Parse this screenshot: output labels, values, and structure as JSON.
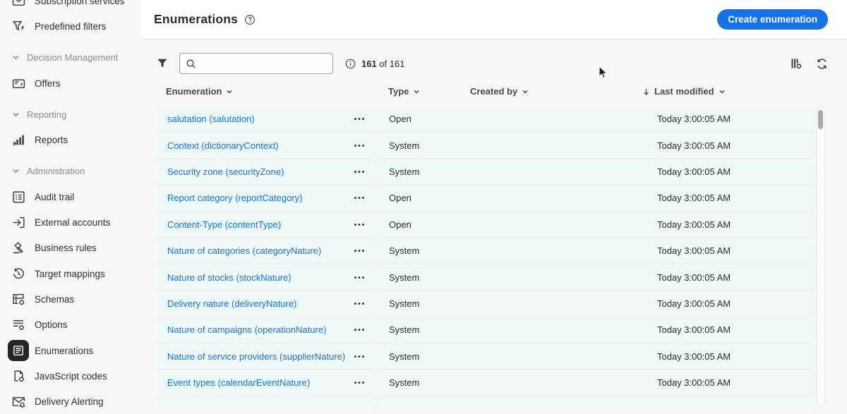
{
  "sidebar": {
    "items": [
      {
        "kind": "item",
        "label": "Subscription services",
        "icon": "subscription-services-icon",
        "selected": false
      },
      {
        "kind": "item",
        "label": "Predefined filters",
        "icon": "predefined-filters-icon",
        "selected": false
      },
      {
        "kind": "section",
        "label": "Decision Management"
      },
      {
        "kind": "item",
        "label": "Offers",
        "icon": "offers-icon",
        "selected": false
      },
      {
        "kind": "section",
        "label": "Reporting"
      },
      {
        "kind": "item",
        "label": "Reports",
        "icon": "reports-icon",
        "selected": false
      },
      {
        "kind": "section",
        "label": "Administration"
      },
      {
        "kind": "item",
        "label": "Audit trail",
        "icon": "audit-trail-icon",
        "selected": false
      },
      {
        "kind": "item",
        "label": "External accounts",
        "icon": "external-accounts-icon",
        "selected": false
      },
      {
        "kind": "item",
        "label": "Business rules",
        "icon": "business-rules-icon",
        "selected": false
      },
      {
        "kind": "item",
        "label": "Target mappings",
        "icon": "target-mappings-icon",
        "selected": false
      },
      {
        "kind": "item",
        "label": "Schemas",
        "icon": "schemas-icon",
        "selected": false
      },
      {
        "kind": "item",
        "label": "Options",
        "icon": "options-icon",
        "selected": false
      },
      {
        "kind": "item",
        "label": "Enumerations",
        "icon": "enumerations-icon",
        "selected": true
      },
      {
        "kind": "item",
        "label": "JavaScript codes",
        "icon": "javascript-codes-icon",
        "selected": false
      },
      {
        "kind": "item",
        "label": "Delivery Alerting",
        "icon": "delivery-alerting-icon",
        "selected": false
      }
    ]
  },
  "header": {
    "title": "Enumerations",
    "create_button_label": "Create enumeration"
  },
  "toolbar": {
    "search_value": "",
    "count_bold": "161",
    "count_rest": " of 161"
  },
  "table": {
    "columns": [
      {
        "label": "Enumeration",
        "sortable": true,
        "sorted": false
      },
      {
        "label": "Type",
        "sortable": true,
        "sorted": false
      },
      {
        "label": "Created by",
        "sortable": true,
        "sorted": false
      },
      {
        "label": "Last modified",
        "sortable": true,
        "sorted": "desc"
      }
    ],
    "rows": [
      {
        "name": "salutation (salutation)",
        "type": "Open",
        "created_by": "",
        "last_modified": "Today 3:00:05 AM"
      },
      {
        "name": "Context (dictionaryContext)",
        "type": "System",
        "created_by": "",
        "last_modified": "Today 3:00:05 AM"
      },
      {
        "name": "Security zone (securityZone)",
        "type": "System",
        "created_by": "",
        "last_modified": "Today 3:00:05 AM"
      },
      {
        "name": "Report category (reportCategory)",
        "type": "Open",
        "created_by": "",
        "last_modified": "Today 3:00:05 AM"
      },
      {
        "name": "Content-Type (contentType)",
        "type": "Open",
        "created_by": "",
        "last_modified": "Today 3:00:05 AM"
      },
      {
        "name": "Nature of categories (categoryNature)",
        "type": "System",
        "created_by": "",
        "last_modified": "Today 3:00:05 AM"
      },
      {
        "name": "Nature of stocks (stockNature)",
        "type": "System",
        "created_by": "",
        "last_modified": "Today 3:00:05 AM"
      },
      {
        "name": "Delivery nature (deliveryNature)",
        "type": "System",
        "created_by": "",
        "last_modified": "Today 3:00:05 AM"
      },
      {
        "name": "Nature of campaigns (operationNature)",
        "type": "System",
        "created_by": "",
        "last_modified": "Today 3:00:05 AM"
      },
      {
        "name": "Nature of service providers (supplierNature)",
        "type": "System",
        "created_by": "",
        "last_modified": "Today 3:00:05 AM"
      },
      {
        "name": "Event types (calendarEventNature)",
        "type": "System",
        "created_by": "",
        "last_modified": "Today 3:00:05 AM"
      }
    ]
  },
  "colors": {
    "accent_blue": "#1473e6",
    "link_blue": "#1473e6",
    "row_background": "#eff9f8",
    "text_dark": "#2c2c2c",
    "section_gray": "#8d8c8b",
    "selected_icon_background": "#252525"
  },
  "icons": {
    "help": "help-icon",
    "filter": "filter-icon",
    "search": "search-icon",
    "info": "info-icon",
    "view_settings": "view-settings-icon",
    "refresh": "refresh-icon",
    "chevron_down": "chevron-down-icon",
    "sort_descending": "sort-down-icon",
    "more_actions": "more-actions-icon",
    "mouse_cursor": "cursor-pointer-icon"
  }
}
